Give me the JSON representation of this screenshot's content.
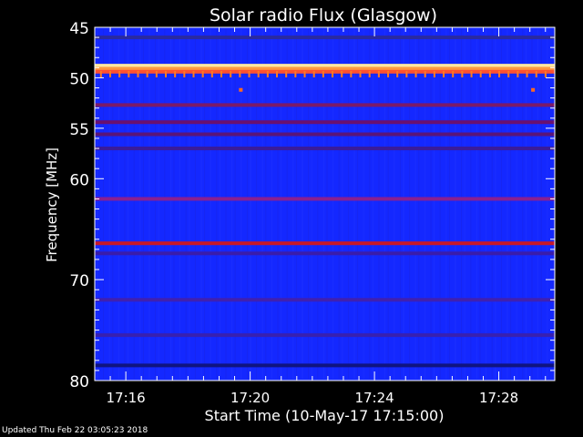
{
  "chart_data": {
    "type": "heatmap",
    "title": "Solar radio Flux (Glasgow)",
    "xlabel": "Start Time (10-May-17 17:15:00)",
    "ylabel": "Frequency [MHz]",
    "x_ticks": [
      "17:16",
      "17:20",
      "17:24",
      "17:28"
    ],
    "x_tick_minutes": [
      1,
      5,
      9,
      13
    ],
    "xlim_minutes": [
      0,
      14.8
    ],
    "y_ticks": [
      45,
      50,
      55,
      60,
      70,
      80
    ],
    "ylim": [
      45,
      80
    ],
    "y_minor_step": 1,
    "background_color": "#1428ff",
    "bands": [
      {
        "freq": 46.0,
        "color": "#2a2aa0"
      },
      {
        "freq": 48.8,
        "color": "#ffe8a0"
      },
      {
        "freq": 49.1,
        "color": "#ff9a40"
      },
      {
        "freq": 49.4,
        "color": "#ff5030"
      },
      {
        "freq": 52.7,
        "color": "#7a1a6a"
      },
      {
        "freq": 54.4,
        "color": "#6a1070"
      },
      {
        "freq": 55.6,
        "color": "#5a1478"
      },
      {
        "freq": 57.0,
        "color": "#3a1c9a"
      },
      {
        "freq": 62.0,
        "color": "#8a2090"
      },
      {
        "freq": 66.4,
        "color": "#c81828"
      },
      {
        "freq": 67.4,
        "color": "#3a1caa"
      },
      {
        "freq": 72.0,
        "color": "#4020b0"
      },
      {
        "freq": 75.5,
        "color": "#3820b0"
      },
      {
        "freq": 78.5,
        "color": "#101480"
      }
    ],
    "spikes_freq": 49.6,
    "spike_color": "#ff7a20",
    "spots": [
      {
        "minute": 4.7,
        "freq": 51.2,
        "color": "#ff6a20"
      },
      {
        "minute": 14.1,
        "freq": 51.2,
        "color": "#ff6a20"
      }
    ]
  },
  "footer": "Updated Thu Feb 22 03:05:23 2018"
}
